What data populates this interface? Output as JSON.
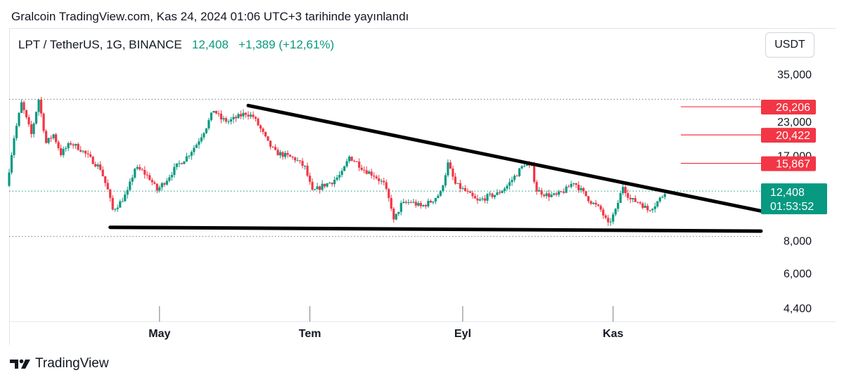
{
  "header": {
    "published": "Gralcoin TradingView.com, Kas 24, 2024 01:06 UTC+3 tarihinde yayınlandı"
  },
  "legend": {
    "symbol": "LPT / TetherUS, 1G, BINANCE",
    "price": "12,408",
    "change": "+1,389 (+12,61%)"
  },
  "currency_button": "USDT",
  "footer": {
    "brand": "TradingView",
    "logo_icon": "tradingview-logo-icon"
  },
  "colors": {
    "up": "#089981",
    "down": "#f23645",
    "level": "#f23645",
    "line": "#000000"
  },
  "chart_data": {
    "type": "candlestick",
    "symbol": "LPT / TetherUS",
    "timeframe": "1G",
    "exchange": "BINANCE",
    "scale": "log",
    "y_ticks": [
      "35,000",
      "23,000",
      "17,000",
      "8,000",
      "6,000",
      "4,400"
    ],
    "y_tick_values": [
      35,
      23,
      17,
      8,
      6,
      4.4
    ],
    "x_ticks": [
      "May",
      "Tem",
      "Eyl",
      "Kas"
    ],
    "x_tick_dates": [
      "2024-05-01",
      "2024-07-01",
      "2024-09-01",
      "2024-11-01"
    ],
    "x_range": [
      "2024-03-01",
      "2024-12-31"
    ],
    "ylim": [
      3.9,
      52
    ],
    "current_price": {
      "label": "12,408",
      "value": 12.408,
      "countdown": "01:53:52"
    },
    "levels": [
      {
        "label": "26,206",
        "value": 26.206
      },
      {
        "label": "20,422",
        "value": 20.422
      },
      {
        "label": "15,867",
        "value": 15.867
      }
    ],
    "dotted_lines": [
      {
        "value": 28.0,
        "style": "dotted"
      },
      {
        "value": 12.408,
        "style": "dotted-green"
      },
      {
        "value": 8.3,
        "style": "dotted"
      }
    ],
    "trendlines": [
      {
        "name": "descending-resistance",
        "from": [
          "2024-06-06",
          26.5
        ],
        "to": [
          "2024-12-31",
          10.4
        ]
      },
      {
        "name": "horizontal-support",
        "from": [
          "2024-04-11",
          9.0
        ],
        "to": [
          "2024-12-31",
          8.7
        ]
      }
    ],
    "price_path": [
      [
        "2024-03-01",
        13.0
      ],
      [
        "2024-03-04",
        20.0
      ],
      [
        "2024-03-07",
        27.0
      ],
      [
        "2024-03-11",
        20.5
      ],
      [
        "2024-03-14",
        28.0
      ],
      [
        "2024-03-17",
        19.0
      ],
      [
        "2024-03-20",
        20.5
      ],
      [
        "2024-03-23",
        17.3
      ],
      [
        "2024-03-27",
        19.0
      ],
      [
        "2024-03-31",
        18.0
      ],
      [
        "2024-04-04",
        16.5
      ],
      [
        "2024-04-08",
        15.2
      ],
      [
        "2024-04-11",
        12.5
      ],
      [
        "2024-04-13",
        10.5
      ],
      [
        "2024-04-16",
        11.2
      ],
      [
        "2024-04-19",
        12.3
      ],
      [
        "2024-04-22",
        15.2
      ],
      [
        "2024-04-25",
        14.8
      ],
      [
        "2024-04-28",
        13.9
      ],
      [
        "2024-05-01",
        12.5
      ],
      [
        "2024-05-05",
        13.8
      ],
      [
        "2024-05-09",
        15.5
      ],
      [
        "2024-05-13",
        16.8
      ],
      [
        "2024-05-17",
        18.8
      ],
      [
        "2024-05-21",
        22.0
      ],
      [
        "2024-05-24",
        25.5
      ],
      [
        "2024-05-27",
        23.5
      ],
      [
        "2024-05-30",
        23.0
      ],
      [
        "2024-06-03",
        24.0
      ],
      [
        "2024-06-06",
        24.8
      ],
      [
        "2024-06-09",
        24.0
      ],
      [
        "2024-06-12",
        21.5
      ],
      [
        "2024-06-15",
        19.0
      ],
      [
        "2024-06-18",
        17.5
      ],
      [
        "2024-06-22",
        17.0
      ],
      [
        "2024-06-26",
        16.5
      ],
      [
        "2024-06-30",
        15.3
      ],
      [
        "2024-07-03",
        12.3
      ],
      [
        "2024-07-07",
        13.0
      ],
      [
        "2024-07-11",
        13.5
      ],
      [
        "2024-07-15",
        14.5
      ],
      [
        "2024-07-18",
        16.8
      ],
      [
        "2024-07-21",
        16.0
      ],
      [
        "2024-07-24",
        15.0
      ],
      [
        "2024-07-28",
        14.3
      ],
      [
        "2024-08-01",
        13.2
      ],
      [
        "2024-08-04",
        10.8
      ],
      [
        "2024-08-05",
        9.5
      ],
      [
        "2024-08-08",
        11.0
      ],
      [
        "2024-08-12",
        11.3
      ],
      [
        "2024-08-16",
        10.8
      ],
      [
        "2024-08-20",
        11.3
      ],
      [
        "2024-08-24",
        12.2
      ],
      [
        "2024-08-27",
        15.8
      ],
      [
        "2024-08-30",
        13.2
      ],
      [
        "2024-09-03",
        12.4
      ],
      [
        "2024-09-08",
        11.3
      ],
      [
        "2024-09-12",
        11.8
      ],
      [
        "2024-09-16",
        12.1
      ],
      [
        "2024-09-20",
        13.0
      ],
      [
        "2024-09-24",
        14.5
      ],
      [
        "2024-09-27",
        15.8
      ],
      [
        "2024-09-30",
        15.2
      ],
      [
        "2024-10-02",
        12.5
      ],
      [
        "2024-10-06",
        12.0
      ],
      [
        "2024-10-10",
        11.9
      ],
      [
        "2024-10-14",
        12.6
      ],
      [
        "2024-10-17",
        13.5
      ],
      [
        "2024-10-20",
        12.5
      ],
      [
        "2024-10-24",
        11.3
      ],
      [
        "2024-10-28",
        10.5
      ],
      [
        "2024-10-31",
        9.2
      ],
      [
        "2024-11-03",
        10.4
      ],
      [
        "2024-11-06",
        13.0
      ],
      [
        "2024-11-09",
        11.5
      ],
      [
        "2024-11-13",
        11.2
      ],
      [
        "2024-11-16",
        10.5
      ],
      [
        "2024-11-19",
        11.0
      ],
      [
        "2024-11-22",
        11.9
      ],
      [
        "2024-11-23",
        12.408
      ]
    ]
  }
}
